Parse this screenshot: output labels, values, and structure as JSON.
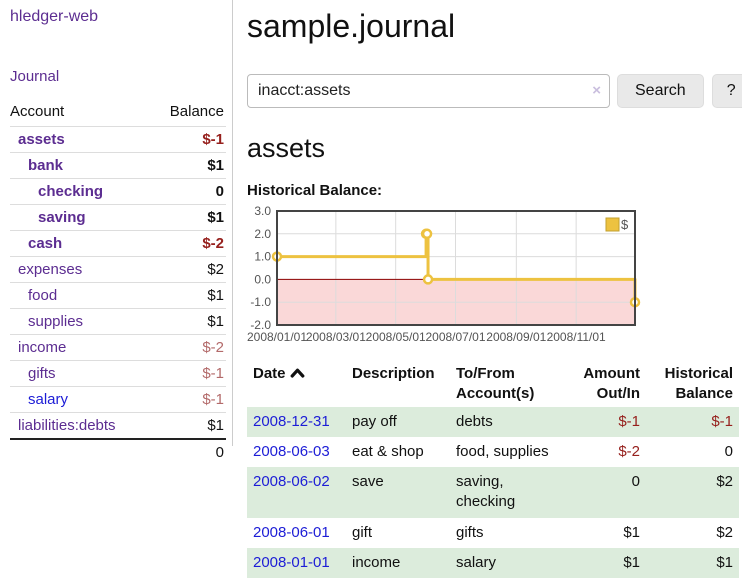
{
  "app": {
    "brand": "hledger-web"
  },
  "colors": {
    "link_purple": "#5c2d91",
    "link_blue": "#1d1dd6",
    "negative": "#96201d",
    "negative_muted": "#b36a6a",
    "row_green": "#dcecdc",
    "chart_line": "#edc240",
    "chart_negative_fill": "#fad8d8",
    "chart_zero_line": "#8b0000"
  },
  "sidebar": {
    "journal_label": "Journal",
    "accounts": {
      "headers": [
        "Account",
        "Balance"
      ],
      "rows": [
        {
          "name": "assets",
          "indent": 1,
          "bold": true,
          "balance": "$-1",
          "balance_style": "neg"
        },
        {
          "name": "bank",
          "indent": 2,
          "bold": true,
          "balance": "$1",
          "balance_style": "pos"
        },
        {
          "name": "checking",
          "indent": 3,
          "bold": true,
          "balance": "0",
          "balance_style": "pos"
        },
        {
          "name": "saving",
          "indent": 3,
          "bold": true,
          "balance": "$1",
          "balance_style": "pos"
        },
        {
          "name": "cash",
          "indent": 2,
          "bold": true,
          "balance": "$-2",
          "balance_style": "neg"
        },
        {
          "name": "expenses",
          "indent": 1,
          "bold": false,
          "balance": "$2",
          "balance_style": "pos"
        },
        {
          "name": "food",
          "indent": 2,
          "bold": false,
          "balance": "$1",
          "balance_style": "pos"
        },
        {
          "name": "supplies",
          "indent": 2,
          "bold": false,
          "balance": "$1",
          "balance_style": "pos"
        },
        {
          "name": "income",
          "indent": 1,
          "bold": false,
          "balance": "$-2",
          "balance_style": "neglight"
        },
        {
          "name": "gifts",
          "indent": 2,
          "bold": false,
          "balance": "$-1",
          "balance_style": "neglight"
        },
        {
          "name": "salary",
          "indent": 2,
          "bold": false,
          "link_style": "blue",
          "balance": "$-1",
          "balance_style": "neglight"
        },
        {
          "name": "liabilities:debts",
          "indent": 1,
          "bold": false,
          "balance": "$1",
          "balance_style": "pos"
        }
      ],
      "total": "0"
    }
  },
  "header": {
    "title": "sample.journal"
  },
  "search": {
    "value": "inacct:assets",
    "clear_icon": "×",
    "button_label": "Search",
    "help_label": "?"
  },
  "register": {
    "account_title": "assets",
    "chart_label": "Historical Balance:",
    "table": {
      "headers": [
        {
          "label": "Date",
          "sortable": true,
          "align": "left"
        },
        {
          "label": "Description",
          "align": "left"
        },
        {
          "label": "To/From Account(s)",
          "align": "left"
        },
        {
          "label": "Amount Out/In",
          "align": "right"
        },
        {
          "label": "Historical Balance",
          "align": "right"
        }
      ],
      "rows": [
        {
          "date": "2008-12-31",
          "description": "pay off",
          "accounts": "debts",
          "amount": "$-1",
          "amount_neg": true,
          "balance": "$-1",
          "balance_neg": true
        },
        {
          "date": "2008-06-03",
          "description": "eat & shop",
          "accounts": "food, supplies",
          "amount": "$-2",
          "amount_neg": true,
          "balance": "0",
          "balance_neg": false
        },
        {
          "date": "2008-06-02",
          "description": "save",
          "accounts": "saving, checking",
          "amount": "0",
          "amount_neg": false,
          "balance": "$2",
          "balance_neg": false
        },
        {
          "date": "2008-06-01",
          "description": "gift",
          "accounts": "gifts",
          "amount": "$1",
          "amount_neg": false,
          "balance": "$2",
          "balance_neg": false
        },
        {
          "date": "2008-01-01",
          "description": "income",
          "accounts": "salary",
          "amount": "$1",
          "amount_neg": false,
          "balance": "$1",
          "balance_neg": false
        }
      ]
    }
  },
  "chart_data": {
    "type": "line",
    "step": true,
    "title": "Historical Balance:",
    "x_start": "2008-01-01",
    "x_end": "2008-12-31",
    "x_ticks": [
      "2008/01/01",
      "2008/03/01",
      "2008/05/01",
      "2008/07/01",
      "2008/09/01",
      "2008/11/01"
    ],
    "y_ticks": [
      3.0,
      2.0,
      1.0,
      0.0,
      -1.0,
      -2.0
    ],
    "ylim": [
      -2,
      3
    ],
    "grid": true,
    "legend_position": "top-right",
    "negative_fill": "#fad8d8",
    "zero_line_color": "#8b0000",
    "series": [
      {
        "name": "$",
        "color": "#edc240",
        "points": [
          [
            "2008-01-01",
            1
          ],
          [
            "2008-06-01",
            2
          ],
          [
            "2008-06-02",
            2
          ],
          [
            "2008-06-03",
            0
          ],
          [
            "2008-12-31",
            -1
          ]
        ]
      }
    ]
  }
}
